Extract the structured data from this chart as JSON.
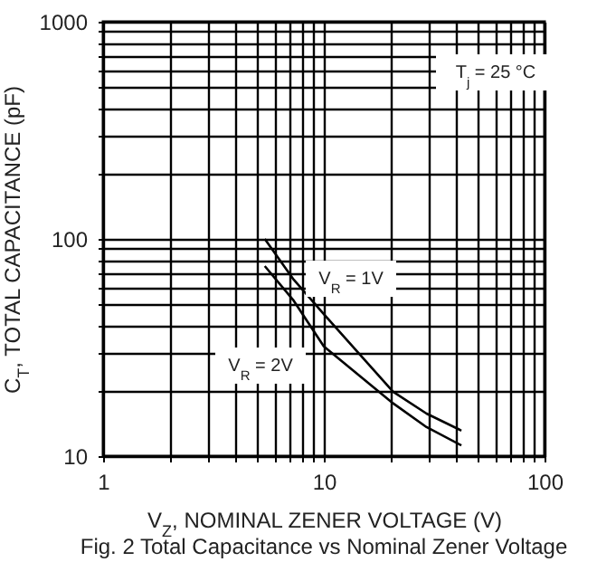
{
  "chart_data": {
    "type": "line",
    "title": "Fig. 2 Total Capacitance vs Nominal Zener Voltage",
    "xlabel": "V$_{Z}$, NOMINAL ZENER VOLTAGE (V)",
    "ylabel": "C$_{T}$, TOTAL CAPACITANCE (pF)",
    "annotations": [
      "T$_{j}$ = 25 °C",
      "V$_{R}$ = 1V",
      "V$_{R}$ = 2V"
    ],
    "series": [
      {
        "color": "#000000",
        "x": [
          5.4,
          7.3,
          10,
          20.6,
          29.2,
          42
        ],
        "values": [
          100,
          65,
          45,
          19.8,
          15.7,
          13.1
        ]
      },
      {
        "color": "#000000",
        "x": [
          5.4,
          7.3,
          10,
          20.6,
          29.2,
          42
        ],
        "values": [
          75,
          52,
          32,
          17.5,
          13.6,
          11.2
        ]
      }
    ],
    "log": "xy",
    "grid": true,
    "xlim": [
      1,
      100
    ],
    "ylim": [
      10,
      1000
    ],
    "xticks": [
      1,
      {
        "value": 2,
        "label": null
      },
      {
        "value": 3,
        "label": null
      },
      {
        "value": 4,
        "label": null
      },
      {
        "value": 5,
        "label": null
      },
      {
        "value": 6,
        "label": null
      },
      {
        "value": 7,
        "label": null
      },
      {
        "value": 8,
        "label": null
      },
      {
        "value": 9,
        "label": null
      },
      10,
      {
        "value": 20,
        "label": null
      },
      {
        "value": 30,
        "label": null
      },
      {
        "value": 40,
        "label": null
      },
      {
        "value": 50,
        "label": null
      },
      {
        "value": 60,
        "label": null
      },
      {
        "value": 70,
        "label": null
      },
      {
        "value": 80,
        "label": null
      },
      {
        "value": 90,
        "label": null
      },
      100
    ],
    "yticks": [
      10,
      {
        "value": 20,
        "label": null
      },
      {
        "value": 30,
        "label": null
      },
      {
        "value": 40,
        "label": null
      },
      {
        "value": 50,
        "label": null
      },
      {
        "value": 60,
        "label": null
      },
      {
        "value": 70,
        "label": null
      },
      {
        "value": 80,
        "label": null
      },
      {
        "value": 90,
        "label": null
      },
      100,
      {
        "value": 200,
        "label": null
      },
      {
        "value": 300,
        "label": null
      },
      {
        "value": 400,
        "label": null
      },
      {
        "value": 500,
        "label": null
      },
      {
        "value": 600,
        "label": null
      },
      {
        "value": 700,
        "label": null
      },
      {
        "value": 800,
        "label": null
      },
      {
        "value": 900,
        "label": null
      },
      1000
    ]
  }
}
